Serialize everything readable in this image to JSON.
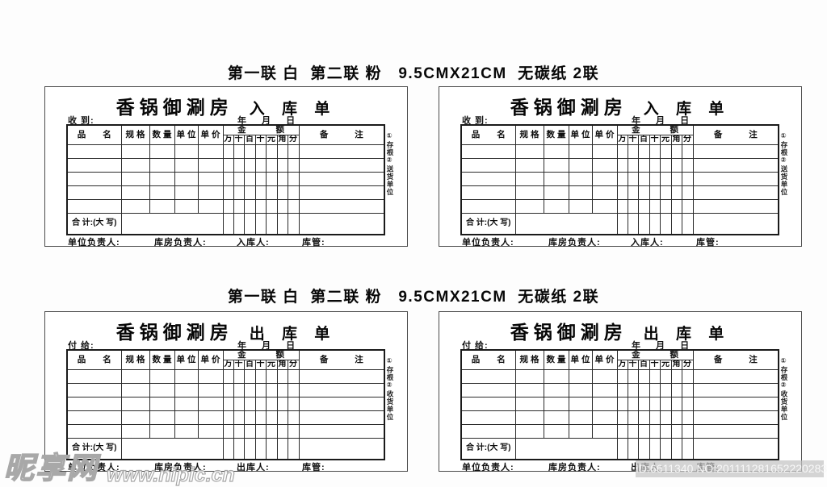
{
  "spec_header": {
    "line1": "第一联 白  第二联 粉   9.5CMX21CM  无碳纸 2联",
    "line2": "第一联 白  第二联 粉   9.5CMX21CM  无碳纸 2联"
  },
  "table": {
    "col_item": "品 名",
    "col_spec": "规 格",
    "col_qty": "数 量",
    "col_unit": "单 位",
    "col_price": "单 价",
    "amount_title": "金 额",
    "amount_digits": [
      "万",
      "千",
      "百",
      "十",
      "元",
      "角",
      "分"
    ],
    "col_remark": "备 注",
    "total_label": "合 计:(大 写)",
    "blank_row_count": 5
  },
  "forms": [
    {
      "brand": "香锅御涮房",
      "title": "入 库 单",
      "party_label": "收 到:",
      "date_line": "年 月 日",
      "side_note": "①存根②送货单位",
      "footer": {
        "unit_manager": "单位负责人:",
        "warehouse_manager": "库房负责人:",
        "handler": "入库人:",
        "keeper": "库管:"
      }
    },
    {
      "brand": "香锅御涮房",
      "title": "入 库 单",
      "party_label": "收 到:",
      "date_line": "年 月 日",
      "side_note": "①存根②送货单位",
      "footer": {
        "unit_manager": "单位负责人:",
        "warehouse_manager": "库房负责人:",
        "handler": "入库人:",
        "keeper": "库管:"
      }
    },
    {
      "brand": "香锅御涮房",
      "title": "出 库 单",
      "party_label": "付 给:",
      "date_line": "年 月 日",
      "side_note": "①存根②收货单位",
      "footer": {
        "unit_manager": "单位负责人:",
        "warehouse_manager": "库房负责人:",
        "handler": "出库人:",
        "keeper": "库管:"
      }
    },
    {
      "brand": "香锅御涮房",
      "title": "出 库 单",
      "party_label": "付 给:",
      "date_line": "年 月 日",
      "side_note": "①存根②收货单位",
      "footer": {
        "unit_manager": "单位负责人:",
        "warehouse_manager": "库房负责人:",
        "handler": "出库人:",
        "keeper": "库管:"
      }
    }
  ],
  "watermarks": {
    "site_name": "昵享网",
    "site_url": "www.nipic.cn",
    "id_line": "ID:6611340 NO:20111128165222028316"
  }
}
